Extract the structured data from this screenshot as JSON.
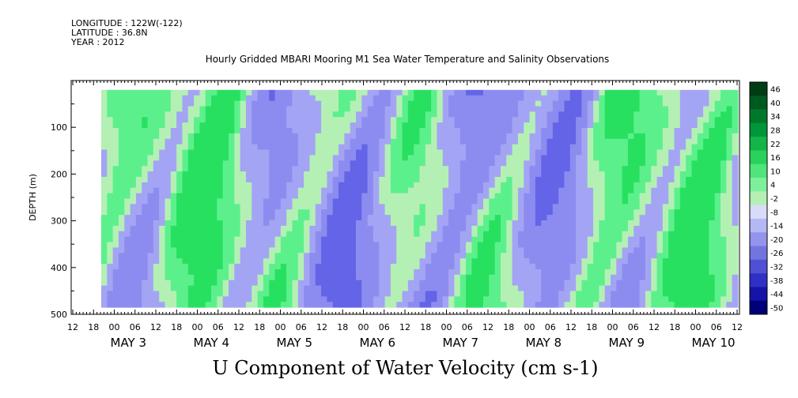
{
  "header": {
    "longitude": "LONGITUDE : 122W(-122)",
    "latitude": "LATITUDE : 36.8N",
    "year": "YEAR : 2012",
    "title": "Hourly Gridded MBARI Mooring M1 Sea Water Temperature and Salinity Observations"
  },
  "chart_data": {
    "type": "heatmap",
    "title": "U Component of Water Velocity (cm s-1)",
    "ylabel": "DEPTH (m)",
    "ylim": [
      500,
      0
    ],
    "yticks": [
      100,
      200,
      300,
      400,
      500
    ],
    "x_hours_start": "12",
    "x_hour_labels": [
      "12",
      "18",
      "00",
      "06",
      "12",
      "18",
      "00",
      "06",
      "12",
      "18",
      "00",
      "06",
      "12",
      "18",
      "00",
      "06",
      "12",
      "18",
      "00",
      "06",
      "12",
      "18",
      "00",
      "06",
      "12",
      "18",
      "00",
      "06",
      "12",
      "18",
      "00",
      "06",
      "12"
    ],
    "day_labels": [
      "MAY  3",
      "MAY  4",
      "MAY  5",
      "MAY  6",
      "MAY  7",
      "MAY  8",
      "MAY  9",
      "MAY 10"
    ],
    "colorbar_labels": [
      "46",
      "40",
      "34",
      "28",
      "22",
      "16",
      "10",
      "4",
      "-2",
      "-8",
      "-14",
      "-20",
      "-26",
      "-32",
      "-38",
      "-44",
      "-50"
    ],
    "colorbar_range": [
      -50,
      50
    ],
    "colors": {
      "negative": "#8c8cf0",
      "near_zero": "#b4f0b4",
      "positive": "#28e060"
    }
  }
}
